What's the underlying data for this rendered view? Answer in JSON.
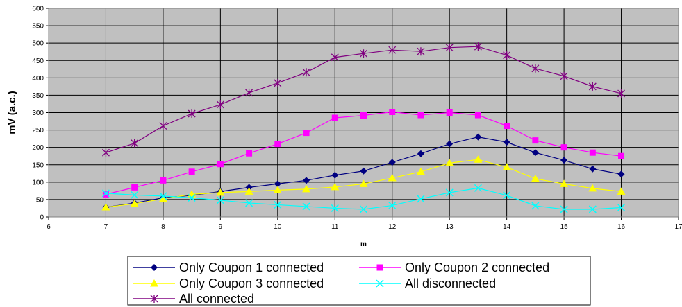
{
  "chart_data": {
    "type": "line",
    "xlabel": "m",
    "ylabel": "mV (a.c.)",
    "xlim": [
      6,
      17
    ],
    "ylim": [
      0,
      600
    ],
    "xticks": [
      "6",
      "7",
      "8",
      "9",
      "10",
      "11",
      "12",
      "13",
      "14",
      "15",
      "16",
      "17"
    ],
    "yticks": [
      "0",
      "50",
      "100",
      "150",
      "200",
      "250",
      "300",
      "350",
      "400",
      "450",
      "500",
      "550",
      "600"
    ],
    "grid": true,
    "legend_position": "bottom",
    "x": [
      7,
      7.5,
      8,
      8.5,
      9,
      9.5,
      10,
      10.5,
      11,
      11.5,
      12,
      12.5,
      13,
      13.5,
      14,
      14.5,
      15,
      15.5,
      16
    ],
    "series": [
      {
        "name": "Only Coupon 1 connected",
        "color": "#000080",
        "line_color": "#000080",
        "marker": "diamond",
        "values": [
          28,
          40,
          55,
          62,
          73,
          85,
          95,
          105,
          120,
          132,
          157,
          182,
          210,
          230,
          215,
          185,
          163,
          138,
          123
        ]
      },
      {
        "name": "Only Coupon 2 connected",
        "color": "#ff00ff",
        "line_color": "#ff00ff",
        "marker": "square",
        "values": [
          65,
          85,
          105,
          130,
          152,
          183,
          210,
          242,
          285,
          292,
          302,
          293,
          300,
          293,
          262,
          220,
          200,
          185,
          175
        ]
      },
      {
        "name": "Only Coupon 3 connected",
        "color": "#ffff00",
        "line_color": "#ffff00",
        "marker": "triangle",
        "values": [
          28,
          38,
          52,
          65,
          70,
          73,
          77,
          80,
          86,
          95,
          112,
          130,
          155,
          165,
          143,
          110,
          95,
          82,
          73
        ]
      },
      {
        "name": "All disconnected",
        "color": "#00ffff",
        "line_color": "#00ffff",
        "marker": "x",
        "values": [
          68,
          63,
          60,
          55,
          48,
          40,
          35,
          30,
          25,
          22,
          33,
          52,
          70,
          83,
          62,
          32,
          22,
          22,
          27
        ]
      },
      {
        "name": "All connected",
        "color": "#800080",
        "line_color": "#800080",
        "marker": "star",
        "values": [
          185,
          212,
          262,
          297,
          323,
          357,
          385,
          416,
          459,
          470,
          480,
          476,
          487,
          490,
          465,
          427,
          405,
          375,
          355
        ]
      }
    ]
  }
}
